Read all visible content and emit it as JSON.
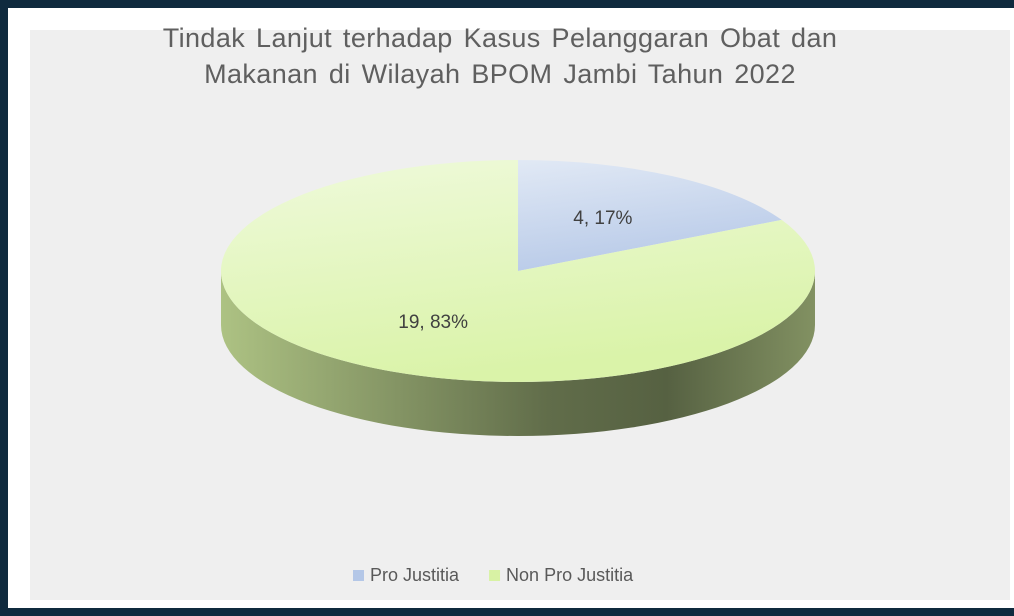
{
  "chart_data": {
    "type": "pie",
    "title": "Tindak Lanjut terhadap Kasus Pelanggaran Obat dan Makanan di Wilayah BPOM Jambi Tahun 2022",
    "categories": [
      "Pro Justitia",
      "Non Pro Justitia"
    ],
    "values": [
      4,
      19
    ],
    "value_labels": [
      "4, 17%",
      "19, 83%"
    ],
    "colors": [
      "#b4c7e7",
      "#d8f2a4"
    ],
    "legend": "bottom"
  }
}
